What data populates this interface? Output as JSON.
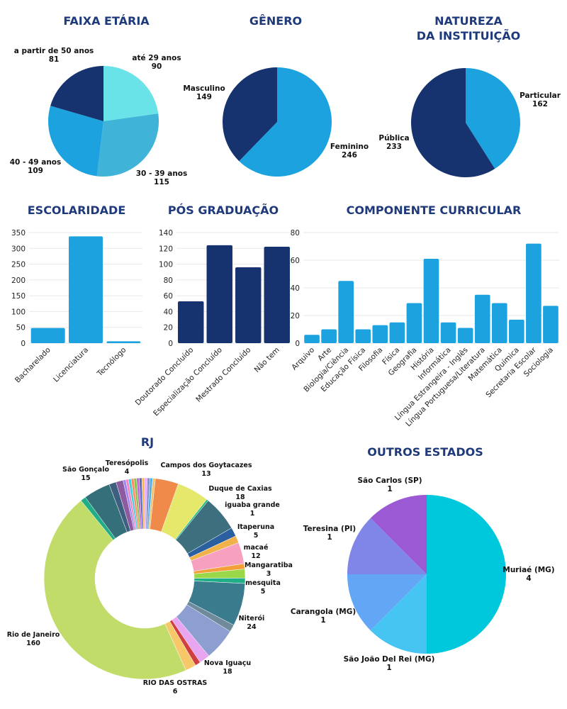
{
  "colors": {
    "title": "#1f3a7a",
    "navy": "#16336f",
    "blue": "#1ca2df",
    "cyan": "#6ae3e8",
    "mid_blue": "#40b4d8"
  },
  "chart_data": [
    {
      "id": "faixa",
      "type": "pie",
      "title": "FAIXA ETÁRIA",
      "slices": [
        {
          "label": "até 29 anos",
          "value": 90,
          "color": "#6ae3e8"
        },
        {
          "label": "30 - 39 anos",
          "value": 115,
          "color": "#40b4d8"
        },
        {
          "label": "40 - 49 anos",
          "value": 109,
          "color": "#1ca2df"
        },
        {
          "label": "a partir de 50 anos",
          "value": 81,
          "color": "#16336f"
        }
      ]
    },
    {
      "id": "genero",
      "type": "pie",
      "title": "GÊNERO",
      "slices": [
        {
          "label": "Feminino",
          "value": 246,
          "color": "#1ca2df"
        },
        {
          "label": "Masculino",
          "value": 149,
          "color": "#16336f"
        }
      ]
    },
    {
      "id": "natureza",
      "type": "pie",
      "title": "NATUREZA\nDA INSTITUIÇÃO",
      "slices": [
        {
          "label": "Particular",
          "value": 162,
          "color": "#1ca2df"
        },
        {
          "label": "Pública",
          "value": 233,
          "color": "#16336f"
        }
      ]
    },
    {
      "id": "escolaridade",
      "type": "bar",
      "title": "ESCOLARIDADE",
      "categories": [
        "Bacharelado",
        "Licenciatura",
        "Tecnólogo"
      ],
      "values": [
        48,
        338,
        6
      ],
      "ylim": [
        0,
        350
      ],
      "yticks": [
        0,
        50,
        100,
        150,
        200,
        250,
        300,
        350
      ],
      "color": "#1ca2df",
      "grid": true
    },
    {
      "id": "pos",
      "type": "bar",
      "title": "PÓS GRADUAÇÃO",
      "categories": [
        "Doutorado Concluído",
        "Especialização Concluído",
        "Mestrado Concluído",
        "Não tem"
      ],
      "values": [
        53,
        124,
        96,
        122
      ],
      "ylim": [
        0,
        140
      ],
      "yticks": [
        0,
        20,
        40,
        60,
        80,
        100,
        120,
        140
      ],
      "color": "#16336f",
      "grid": true
    },
    {
      "id": "componente",
      "type": "bar",
      "title": "COMPONENTE CURRICULAR",
      "categories": [
        "Arquivo",
        "Arte",
        "Biologia/Ciência",
        "Educação Física",
        "Filosofia",
        "Física",
        "Geografia",
        "História",
        "Informática",
        "Língua Estrangeira - Inglês",
        "Língua Portuguesa/Literatura",
        "Matemática",
        "Química",
        "Secretaria Escolar",
        "Sociologia"
      ],
      "values": [
        6,
        10,
        45,
        10,
        13,
        15,
        29,
        61,
        15,
        11,
        35,
        29,
        17,
        72,
        27
      ],
      "ylim": [
        0,
        80
      ],
      "yticks": [
        0,
        20,
        40,
        60,
        80
      ],
      "color": "#1ca2df",
      "grid": true
    },
    {
      "id": "rj",
      "type": "pie",
      "title": "RJ",
      "labeled": [
        {
          "label": "Campos dos Goytacazes",
          "value": 13
        },
        {
          "label": "Duque de Caxias",
          "value": 18
        },
        {
          "label": "iguaba grande",
          "value": 1
        },
        {
          "label": "Itaperuna",
          "value": 5
        },
        {
          "label": "macaé",
          "value": 12
        },
        {
          "label": "Mangaratiba",
          "value": 3
        },
        {
          "label": "mesquita",
          "value": 5
        },
        {
          "label": "Niterói",
          "value": 24
        },
        {
          "label": "Nova Iguaçu",
          "value": 18
        },
        {
          "label": "RIO DAS OSTRAS",
          "value": 6
        },
        {
          "label": "Rio de Janeiro",
          "value": 160
        },
        {
          "label": "São Gonçalo",
          "value": 15
        },
        {
          "label": "Teresópolis",
          "value": 4
        }
      ]
    },
    {
      "id": "outros",
      "type": "pie",
      "title": "OUTROS ESTADOS",
      "slices": [
        {
          "label": "Muriaé (MG)",
          "value": 4,
          "color": "#00c8dc"
        },
        {
          "label": "São João Del Rei (MG)",
          "value": 1,
          "color": "#46c4f2"
        },
        {
          "label": "Carangola (MG)",
          "value": 1,
          "color": "#62a6f5"
        },
        {
          "label": "Teresina (PI)",
          "value": 1,
          "color": "#7f86e8"
        },
        {
          "label": "São Carlos (SP)",
          "value": 1,
          "color": "#9b59d3"
        }
      ]
    }
  ]
}
